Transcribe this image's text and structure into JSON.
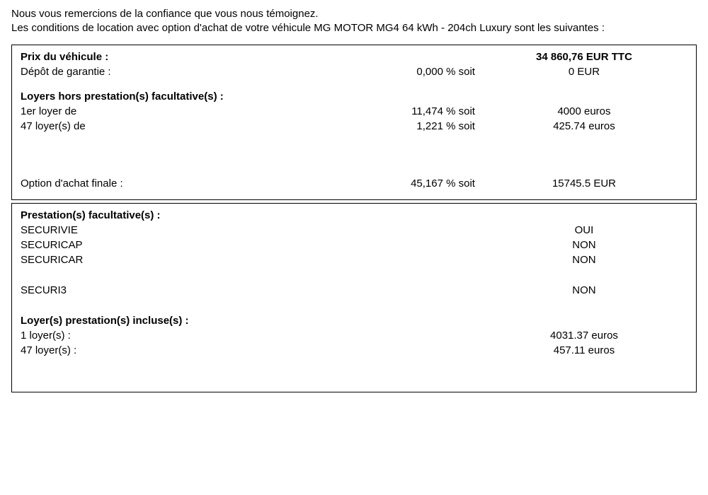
{
  "intro": {
    "line1": "Nous vous remercions de la confiance que vous nous témoignez.",
    "line2": "Les conditions de location avec option d'achat de votre véhicule MG MOTOR MG4 64 kWh - 204ch Luxury sont les suivantes :"
  },
  "box1": {
    "price_label": "Prix du véhicule :",
    "price_value": "34 860,76  EUR TTC",
    "deposit_label": "Dépôt de garantie :",
    "deposit_pct": "0,000 % soit",
    "deposit_value": "0  EUR",
    "loyers_header": "Loyers hors prestation(s) facultative(s) :",
    "first_label": "1er loyer de",
    "first_pct": "11,474 % soit",
    "first_value": "4000 euros",
    "rest_label": "47 loyer(s) de",
    "rest_pct": "1,221 % soit",
    "rest_value": "425.74 euros",
    "option_label": "Option d'achat finale :",
    "option_pct": "45,167 % soit",
    "option_value": "15745.5 EUR"
  },
  "box2": {
    "prest_header": "Prestation(s) facultative(s) :",
    "p1_label": "SECURIVIE",
    "p1_val": "OUI",
    "p2_label": "SECURICAP",
    "p2_val": "NON",
    "p3_label": "SECURICAR",
    "p3_val": "NON",
    "p4_label": "SECURI3",
    "p4_val": "NON",
    "incl_header": "Loyer(s) prestation(s) incluse(s) :",
    "incl1_label": "1 loyer(s) :",
    "incl1_val": "4031.37 euros",
    "incl2_label": "47 loyer(s) :",
    "incl2_val": "457.11 euros"
  }
}
